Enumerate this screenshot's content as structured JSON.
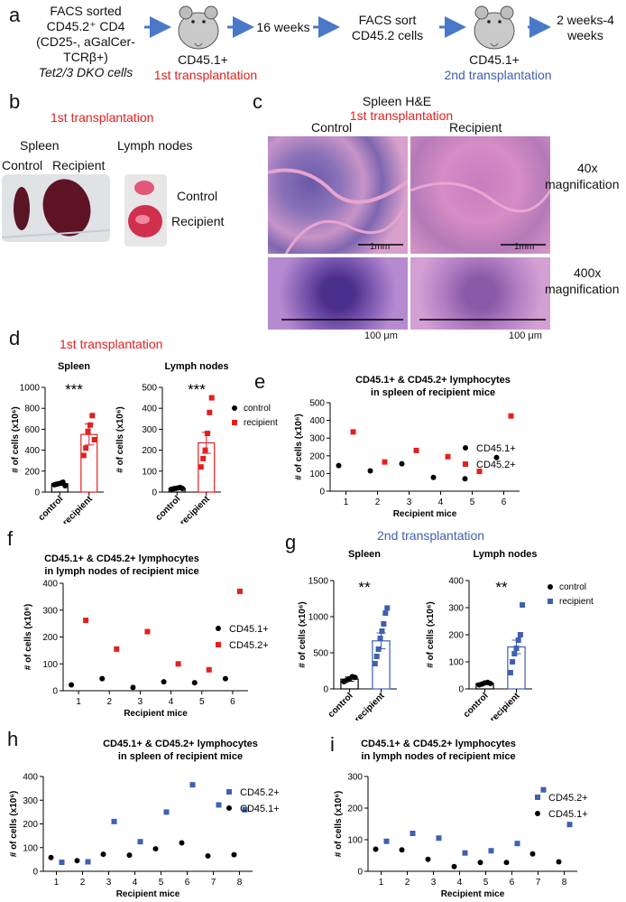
{
  "panels": {
    "a": "a",
    "b": "b",
    "c": "c",
    "d": "d",
    "e": "e",
    "f": "f",
    "g": "g",
    "h": "h",
    "i": "i"
  },
  "a": {
    "line1": "FACS sorted",
    "line2": "CD45.2⁺ CD4",
    "line3": "(CD25-, aGalCer-TCRβ+)",
    "line4": "Tet2/3 DKO cells",
    "mouse1_label": "CD45.1+",
    "transplant1": "1st transplantation",
    "weeks16": "16 weeks",
    "sort_line1": "FACS sort",
    "sort_line2": "CD45.2 cells",
    "mouse2_label": "CD45.1+",
    "transplant2": "2nd transplantation",
    "weeks_line1": "2 weeks-4",
    "weeks_line2": "weeks"
  },
  "b": {
    "title": "1st transplantation",
    "spleen": "Spleen",
    "control": "Control",
    "recipient": "Recipient",
    "lymph": "Lymph nodes",
    "ln_control": "Control",
    "ln_recipient": "Recipient"
  },
  "c": {
    "title": "Spleen H&E",
    "subtitle": "1st transplantation",
    "control": "Control",
    "recipient": "Recipient",
    "mag40": "40x",
    "mag40b": "magnification",
    "mag400": "400x",
    "mag400b": "magnification",
    "scale1": "1mm",
    "scale2": "1mm",
    "scale3": "100 μm",
    "scale4": "100 μm"
  },
  "colors": {
    "red": "#e22020",
    "blue": "#3f5fb0",
    "black": "#000000"
  },
  "chart_data": [
    {
      "id": "d-spleen",
      "type": "bar",
      "title": "Spleen",
      "super_title": "1st transplantation",
      "ylabel": "# of cells (x10⁶)",
      "ylim": [
        0,
        1000
      ],
      "yticks": [
        0,
        200,
        400,
        600,
        800,
        1000
      ],
      "categories": [
        "control",
        "recipient"
      ],
      "values": [
        80,
        550
      ],
      "errors": [
        15,
        100
      ],
      "points": [
        [
          70,
          75,
          80,
          85,
          95,
          60
        ],
        [
          350,
          420,
          580,
          640,
          730,
          500
        ]
      ],
      "significance": "***"
    },
    {
      "id": "d-lymph",
      "type": "bar",
      "title": "Lymph nodes",
      "ylabel": "# of cells (x10⁶)",
      "ylim": [
        0,
        500
      ],
      "yticks": [
        0,
        100,
        200,
        300,
        400,
        500
      ],
      "categories": [
        "control",
        "recipient"
      ],
      "values": [
        18,
        235
      ],
      "errors": [
        3,
        50
      ],
      "points": [
        [
          14,
          16,
          18,
          20,
          22,
          17
        ],
        [
          120,
          160,
          200,
          280,
          380,
          450
        ]
      ],
      "significance": "***",
      "legend": [
        "control",
        "recipient"
      ]
    },
    {
      "id": "e",
      "type": "scatter",
      "title": "CD45.1+ & CD45.2+ lymphocytes",
      "title2": "in spleen of recipient mice",
      "xlabel": "Recipient mice",
      "ylabel": "# of cells (x10⁶)",
      "ylim": [
        0,
        500
      ],
      "yticks": [
        0,
        100,
        200,
        300,
        400,
        500
      ],
      "xticks": [
        1,
        2,
        3,
        4,
        5,
        6
      ],
      "series": [
        {
          "name": "CD45.1+",
          "x": [
            1,
            2,
            3,
            4,
            5,
            6
          ],
          "values": [
            145,
            115,
            155,
            78,
            70,
            190
          ]
        },
        {
          "name": "CD45.2+",
          "x": [
            1,
            2,
            3,
            4,
            5,
            6
          ],
          "values": [
            335,
            165,
            230,
            195,
            112,
            425
          ]
        }
      ]
    },
    {
      "id": "f",
      "type": "scatter",
      "title": "CD45.1+ & CD45.2+ lymphocytes",
      "title2": "in lymph nodes of recipient mice",
      "xlabel": "Recipient mice",
      "ylabel": "# of cells (x10⁶)",
      "ylim": [
        0,
        400
      ],
      "yticks": [
        0,
        100,
        200,
        300,
        400
      ],
      "xticks": [
        1,
        2,
        3,
        4,
        5,
        6
      ],
      "series": [
        {
          "name": "CD45.1+",
          "x": [
            1,
            2,
            3,
            4,
            5,
            6
          ],
          "values": [
            22,
            45,
            12,
            33,
            30,
            45
          ]
        },
        {
          "name": "CD45.2+",
          "x": [
            1,
            2,
            3,
            4,
            5,
            6
          ],
          "values": [
            262,
            155,
            220,
            100,
            78,
            370
          ]
        }
      ]
    },
    {
      "id": "g-spleen",
      "type": "bar",
      "title": "Spleen",
      "super_title": "2nd transplantation",
      "ylabel": "# of cells (x10⁶)",
      "ylim": [
        0,
        1500
      ],
      "yticks": [
        0,
        500,
        1000,
        1500
      ],
      "categories": [
        "control",
        "recipient"
      ],
      "values": [
        135,
        665
      ],
      "errors": [
        30,
        110
      ],
      "points": [
        [
          100,
          120,
          140,
          170,
          160
        ],
        [
          350,
          450,
          550,
          700,
          800,
          900,
          1050,
          1120
        ]
      ],
      "significance": "**"
    },
    {
      "id": "g-lymph",
      "type": "bar",
      "title": "Lymph nodes",
      "ylabel": "# of cells (x10⁶)",
      "ylim": [
        0,
        400
      ],
      "yticks": [
        0,
        100,
        200,
        300,
        400
      ],
      "categories": [
        "control",
        "recipient"
      ],
      "values": [
        20,
        155
      ],
      "errors": [
        4,
        25
      ],
      "points": [
        [
          15,
          18,
          22,
          24,
          20
        ],
        [
          60,
          100,
          130,
          150,
          180,
          200,
          310
        ]
      ],
      "significance": "**",
      "legend": [
        "control",
        "recipient"
      ]
    },
    {
      "id": "h",
      "type": "scatter",
      "title": "CD45.1+ & CD45.2+ lymphocytes",
      "title2": "in spleen of recipient mice",
      "xlabel": "Recipient mice",
      "ylabel": "# of cells (x10⁶)",
      "ylim": [
        0,
        400
      ],
      "yticks": [
        0,
        100,
        200,
        300,
        400
      ],
      "xticks": [
        1,
        2,
        3,
        4,
        5,
        6,
        7,
        8
      ],
      "series": [
        {
          "name": "CD45.2+",
          "x": [
            1,
            2,
            3,
            4,
            5,
            6,
            7,
            8
          ],
          "values": [
            38,
            40,
            210,
            125,
            250,
            365,
            280,
            260
          ]
        },
        {
          "name": "CD45.1+",
          "x": [
            1,
            2,
            3,
            4,
            5,
            6,
            7,
            8
          ],
          "values": [
            58,
            45,
            72,
            68,
            95,
            120,
            65,
            70
          ]
        }
      ]
    },
    {
      "id": "i",
      "type": "scatter",
      "title": "CD45.1+ & CD45.2+ lymphocytes",
      "title2": "in lymph nodes of recipient mice",
      "xlabel": "Recipient mice",
      "ylabel": "# of cells (x10⁶)",
      "ylim": [
        0,
        300
      ],
      "yticks": [
        0,
        100,
        200,
        300
      ],
      "xticks": [
        1,
        2,
        3,
        4,
        5,
        6,
        7,
        8
      ],
      "series": [
        {
          "name": "CD45.2+",
          "x": [
            1,
            2,
            3,
            4,
            5,
            6,
            7,
            8
          ],
          "values": [
            95,
            120,
            105,
            58,
            65,
            88,
            258,
            148
          ]
        },
        {
          "name": "CD45.1+",
          "x": [
            1,
            2,
            3,
            4,
            5,
            6,
            7,
            8
          ],
          "values": [
            70,
            68,
            38,
            15,
            28,
            28,
            55,
            30
          ]
        }
      ]
    }
  ]
}
